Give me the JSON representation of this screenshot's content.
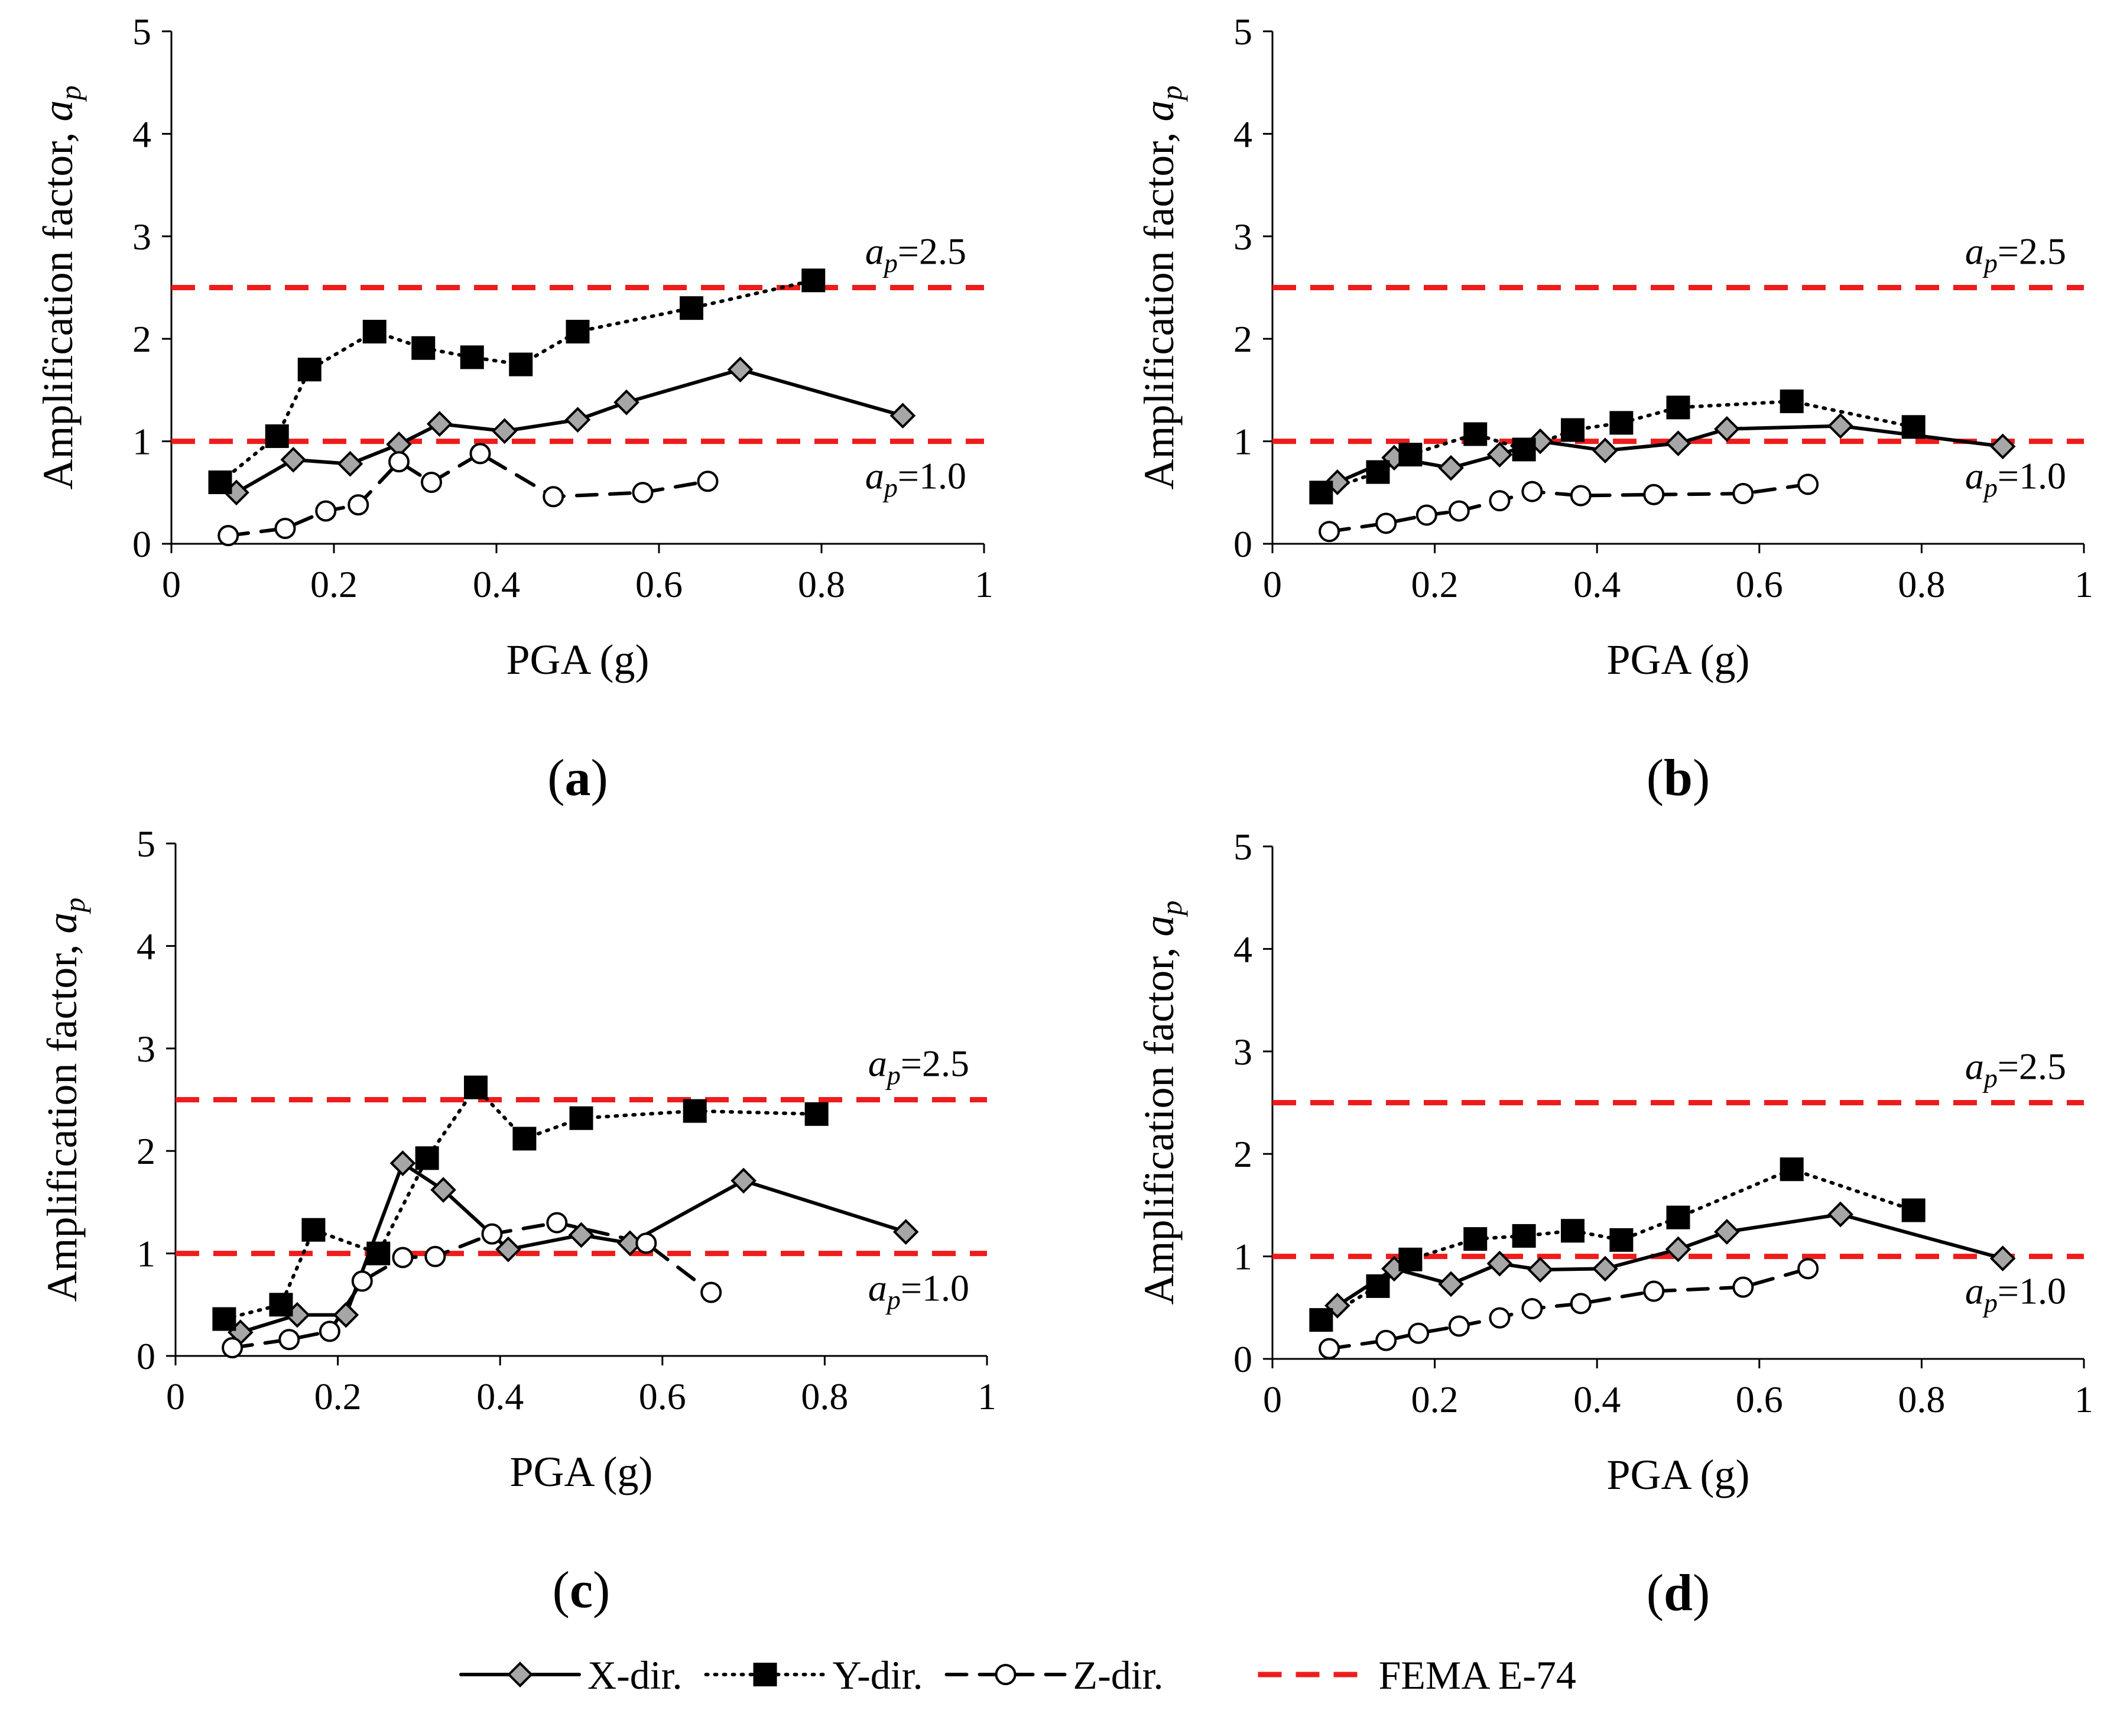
{
  "legend": [
    {
      "label": "X-dir.",
      "style": "solid",
      "marker": "diamond"
    },
    {
      "label": "Y-dir.",
      "style": "dotted",
      "marker": "square"
    },
    {
      "label": "Z-dir.",
      "style": "dashed",
      "marker": "circle"
    },
    {
      "label": "FEMA E-74",
      "style": "fema",
      "marker": "none"
    }
  ],
  "colors": {
    "fema_line": "#ee1c1c",
    "x_marker": "#a6a6a6",
    "y_marker": "#000000",
    "z_marker": "#ffffff",
    "series_line": "#000000"
  },
  "chart_data": [
    {
      "type": "line",
      "panel_label": "a",
      "xlabel": "PGA (g)",
      "ylabel_text": "Amplification factor, ",
      "ylabel_var": "a",
      "ylabel_sub": "p",
      "xlim": [
        0,
        1
      ],
      "ylim": [
        0,
        5
      ],
      "xticks": [
        0,
        0.2,
        0.4,
        0.6,
        0.8,
        1
      ],
      "xtick_labels": [
        "0",
        "0.2",
        "0.4",
        "0.6",
        "0.8",
        "1"
      ],
      "yticks": [
        0,
        1,
        2,
        3,
        4,
        5
      ],
      "ytick_labels": [
        "0",
        "1",
        "2",
        "3",
        "4",
        "5"
      ],
      "grid": false,
      "reference_lines": [
        {
          "y": 2.5,
          "label_var": "a",
          "label_sub": "p",
          "label_val": "=2.5",
          "label_pos": "above-right"
        },
        {
          "y": 1.0,
          "label_var": "a",
          "label_sub": "p",
          "label_val": "=1.0",
          "label_pos": "below-right"
        }
      ],
      "series": [
        {
          "name": "X-dir.",
          "x": [
            0.08,
            0.15,
            0.22,
            0.28,
            0.33,
            0.41,
            0.5,
            0.56,
            0.7,
            0.9
          ],
          "y": [
            0.5,
            0.82,
            0.78,
            0.97,
            1.17,
            1.1,
            1.21,
            1.38,
            1.7,
            1.25
          ]
        },
        {
          "name": "Y-dir.",
          "x": [
            0.06,
            0.13,
            0.17,
            0.25,
            0.31,
            0.37,
            0.43,
            0.5,
            0.64,
            0.79
          ],
          "y": [
            0.6,
            1.05,
            1.7,
            2.07,
            1.91,
            1.82,
            1.75,
            2.07,
            2.3,
            2.57
          ]
        },
        {
          "name": "Z-dir.",
          "x": [
            0.07,
            0.14,
            0.19,
            0.23,
            0.28,
            0.32,
            0.38,
            0.47,
            0.58,
            0.66
          ],
          "y": [
            0.08,
            0.15,
            0.32,
            0.38,
            0.8,
            0.6,
            0.88,
            0.46,
            0.5,
            0.61
          ]
        }
      ]
    },
    {
      "type": "line",
      "panel_label": "b",
      "xlabel": "PGA (g)",
      "ylabel_text": "Amplification factor, ",
      "ylabel_var": "a",
      "ylabel_sub": "p",
      "xlim": [
        0,
        1
      ],
      "ylim": [
        0,
        5
      ],
      "xticks": [
        0,
        0.2,
        0.4,
        0.6,
        0.8,
        1
      ],
      "xtick_labels": [
        "0",
        "0.2",
        "0.4",
        "0.6",
        "0.8",
        "1"
      ],
      "yticks": [
        0,
        1,
        2,
        3,
        4,
        5
      ],
      "ytick_labels": [
        "0",
        "1",
        "2",
        "3",
        "4",
        "5"
      ],
      "grid": false,
      "reference_lines": [
        {
          "y": 2.5,
          "label_var": "a",
          "label_sub": "p",
          "label_val": "=2.5",
          "label_pos": "above-right"
        },
        {
          "y": 1.0,
          "label_var": "a",
          "label_sub": "p",
          "label_val": "=1.0",
          "label_pos": "below-right"
        }
      ],
      "series": [
        {
          "name": "X-dir.",
          "x": [
            0.08,
            0.15,
            0.22,
            0.28,
            0.33,
            0.41,
            0.5,
            0.56,
            0.7,
            0.9
          ],
          "y": [
            0.6,
            0.84,
            0.74,
            0.87,
            1.0,
            0.91,
            0.98,
            1.12,
            1.15,
            0.95
          ]
        },
        {
          "name": "Y-dir.",
          "x": [
            0.06,
            0.13,
            0.17,
            0.25,
            0.31,
            0.37,
            0.43,
            0.5,
            0.64,
            0.79
          ],
          "y": [
            0.5,
            0.7,
            0.87,
            1.07,
            0.92,
            1.11,
            1.18,
            1.33,
            1.39,
            1.14
          ]
        },
        {
          "name": "Z-dir.",
          "x": [
            0.07,
            0.14,
            0.19,
            0.23,
            0.28,
            0.32,
            0.38,
            0.47,
            0.58,
            0.66
          ],
          "y": [
            0.12,
            0.2,
            0.28,
            0.32,
            0.42,
            0.51,
            0.47,
            0.48,
            0.49,
            0.58
          ]
        }
      ]
    },
    {
      "type": "line",
      "panel_label": "c",
      "xlabel": "PGA (g)",
      "ylabel_text": "Amplification factor, ",
      "ylabel_var": "a",
      "ylabel_sub": "p",
      "xlim": [
        0,
        1
      ],
      "ylim": [
        0,
        5
      ],
      "xticks": [
        0,
        0.2,
        0.4,
        0.6,
        0.8,
        1
      ],
      "xtick_labels": [
        "0",
        "0.2",
        "0.4",
        "0.6",
        "0.8",
        "1"
      ],
      "yticks": [
        0,
        1,
        2,
        3,
        4,
        5
      ],
      "ytick_labels": [
        "0",
        "1",
        "2",
        "3",
        "4",
        "5"
      ],
      "grid": false,
      "reference_lines": [
        {
          "y": 2.5,
          "label_var": "a",
          "label_sub": "p",
          "label_val": "=2.5",
          "label_pos": "above-right"
        },
        {
          "y": 1.0,
          "label_var": "a",
          "label_sub": "p",
          "label_val": "=1.0",
          "label_pos": "below-right"
        }
      ],
      "series": [
        {
          "name": "X-dir.",
          "x": [
            0.08,
            0.15,
            0.21,
            0.28,
            0.33,
            0.41,
            0.5,
            0.56,
            0.7,
            0.9
          ],
          "y": [
            0.23,
            0.4,
            0.4,
            1.88,
            1.62,
            1.04,
            1.18,
            1.1,
            1.71,
            1.21
          ]
        },
        {
          "name": "Y-dir.",
          "x": [
            0.06,
            0.13,
            0.17,
            0.25,
            0.31,
            0.37,
            0.43,
            0.5,
            0.64,
            0.79
          ],
          "y": [
            0.36,
            0.5,
            1.23,
            1.0,
            1.93,
            2.62,
            2.12,
            2.32,
            2.39,
            2.36
          ]
        },
        {
          "name": "Z-dir.",
          "x": [
            0.07,
            0.14,
            0.19,
            0.23,
            0.28,
            0.32,
            0.39,
            0.47,
            0.58,
            0.66
          ],
          "y": [
            0.08,
            0.16,
            0.24,
            0.73,
            0.96,
            0.97,
            1.19,
            1.3,
            1.1,
            0.62
          ]
        }
      ]
    },
    {
      "type": "line",
      "panel_label": "d",
      "xlabel": "PGA (g)",
      "ylabel_text": "Amplification factor, ",
      "ylabel_var": "a",
      "ylabel_sub": "p",
      "xlim": [
        0,
        1
      ],
      "ylim": [
        0,
        5
      ],
      "xticks": [
        0,
        0.2,
        0.4,
        0.6,
        0.8,
        1
      ],
      "xtick_labels": [
        "0",
        "0.2",
        "0.4",
        "0.6",
        "0.8",
        "1"
      ],
      "yticks": [
        0,
        1,
        2,
        3,
        4,
        5
      ],
      "ytick_labels": [
        "0",
        "1",
        "2",
        "3",
        "4",
        "5"
      ],
      "grid": false,
      "reference_lines": [
        {
          "y": 2.5,
          "label_var": "a",
          "label_sub": "p",
          "label_val": "=2.5",
          "label_pos": "above-right"
        },
        {
          "y": 1.0,
          "label_var": "a",
          "label_sub": "p",
          "label_val": "=1.0",
          "label_pos": "below-right"
        }
      ],
      "series": [
        {
          "name": "X-dir.",
          "x": [
            0.08,
            0.15,
            0.22,
            0.28,
            0.33,
            0.41,
            0.5,
            0.56,
            0.7,
            0.9
          ],
          "y": [
            0.52,
            0.88,
            0.73,
            0.93,
            0.87,
            0.88,
            1.07,
            1.24,
            1.41,
            0.98
          ]
        },
        {
          "name": "Y-dir.",
          "x": [
            0.06,
            0.13,
            0.17,
            0.25,
            0.31,
            0.37,
            0.43,
            0.5,
            0.64,
            0.79
          ],
          "y": [
            0.38,
            0.71,
            0.97,
            1.17,
            1.2,
            1.25,
            1.16,
            1.38,
            1.85,
            1.45
          ]
        },
        {
          "name": "Z-dir.",
          "x": [
            0.07,
            0.14,
            0.18,
            0.23,
            0.28,
            0.32,
            0.38,
            0.47,
            0.58,
            0.66
          ],
          "y": [
            0.1,
            0.18,
            0.25,
            0.32,
            0.4,
            0.49,
            0.54,
            0.66,
            0.7,
            0.88
          ]
        }
      ]
    }
  ]
}
